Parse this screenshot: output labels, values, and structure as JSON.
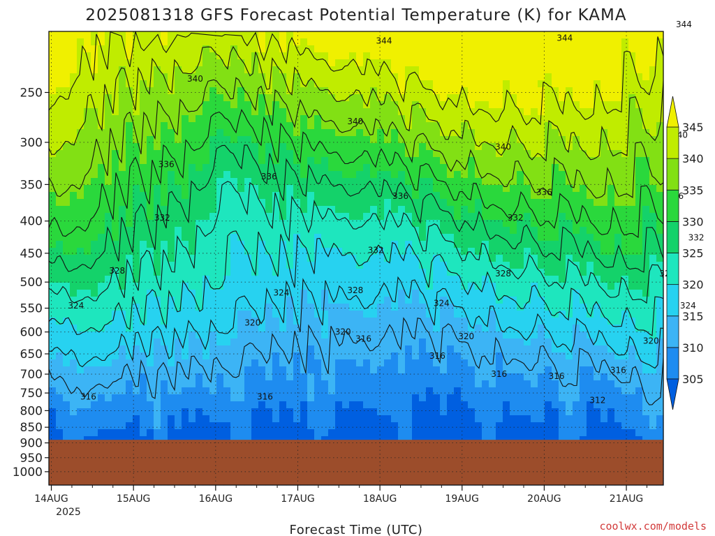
{
  "chart_data": {
    "type": "contour",
    "title": "2025081318 GFS Forecast Potential Temperature (K) for KAMA",
    "xlabel": "Forecast Time (UTC)",
    "ylabel": "",
    "y_axis": {
      "ticks": [
        250,
        300,
        350,
        400,
        450,
        500,
        550,
        600,
        650,
        700,
        750,
        800,
        850,
        900,
        950,
        1000
      ],
      "range": [
        200,
        1050
      ],
      "scale": "log-pressure"
    },
    "x_axis": {
      "ticks": [
        "14AUG",
        "15AUG",
        "16AUG",
        "17AUG",
        "18AUG",
        "19AUG",
        "20AUG",
        "21AUG"
      ],
      "year_label": "2025",
      "range_days": [
        -0.03,
        7.45
      ]
    },
    "grid": true,
    "surface_level_hpa": 890,
    "colorbar": {
      "levels": [
        305,
        310,
        315,
        320,
        325,
        330,
        335,
        340,
        345
      ],
      "colors": [
        "#005fe0",
        "#1e8cf0",
        "#3cb4f5",
        "#27d2f0",
        "#1ee6be",
        "#14d26a",
        "#2ad83c",
        "#82e014",
        "#c0ec00",
        "#f0f000"
      ],
      "below_color": "#005fe0",
      "above_color": "#f0f000"
    },
    "contour_lines": [
      {
        "value": 312,
        "label_at": {
          "day": 6.65,
          "hpa": 770
        }
      },
      {
        "value": 316,
        "label_at": [
          {
            "day": 0.45,
            "hpa": 760
          },
          {
            "day": 2.6,
            "hpa": 760
          },
          {
            "day": 3.8,
            "hpa": 615
          },
          {
            "day": 4.7,
            "hpa": 655
          },
          {
            "day": 5.45,
            "hpa": 700
          },
          {
            "day": 6.15,
            "hpa": 705
          },
          {
            "day": 6.9,
            "hpa": 690
          }
        ]
      },
      {
        "value": 320,
        "label_at": [
          {
            "day": 2.45,
            "hpa": 580
          },
          {
            "day": 3.55,
            "hpa": 600
          },
          {
            "day": 5.05,
            "hpa": 610
          },
          {
            "day": 7.3,
            "hpa": 620
          }
        ]
      },
      {
        "value": 324,
        "label_at": [
          {
            "day": 0.3,
            "hpa": 545
          },
          {
            "day": 2.8,
            "hpa": 520
          },
          {
            "day": 4.75,
            "hpa": 540
          },
          {
            "day": 7.75,
            "hpa": 545
          }
        ]
      },
      {
        "value": 328,
        "label_at": [
          {
            "day": 0.8,
            "hpa": 480
          },
          {
            "day": 3.7,
            "hpa": 515
          },
          {
            "day": 5.5,
            "hpa": 485
          },
          {
            "day": 7.5,
            "hpa": 485
          }
        ]
      },
      {
        "value": 332,
        "label_at": [
          {
            "day": 1.35,
            "hpa": 395
          },
          {
            "day": 3.95,
            "hpa": 445
          },
          {
            "day": 5.65,
            "hpa": 395
          },
          {
            "day": 7.85,
            "hpa": 425
          }
        ]
      },
      {
        "value": 336,
        "label_at": [
          {
            "day": 1.4,
            "hpa": 325
          },
          {
            "day": 2.65,
            "hpa": 340
          },
          {
            "day": 4.25,
            "hpa": 365
          },
          {
            "day": 6.0,
            "hpa": 360
          },
          {
            "day": 7.6,
            "hpa": 365
          }
        ]
      },
      {
        "value": 340,
        "label_at": [
          {
            "day": 1.75,
            "hpa": 238
          },
          {
            "day": 3.7,
            "hpa": 278
          },
          {
            "day": 5.5,
            "hpa": 305
          },
          {
            "day": 7.65,
            "hpa": 292
          }
        ]
      },
      {
        "value": 344,
        "label_at": [
          {
            "day": 4.05,
            "hpa": 207
          },
          {
            "day": 6.25,
            "hpa": 205
          },
          {
            "day": 7.7,
            "hpa": 195
          }
        ]
      }
    ]
  },
  "labels": {
    "title": "2025081318 GFS Forecast Potential Temperature (K) for KAMA",
    "xlabel": "Forecast Time (UTC)",
    "year": "2025",
    "credit": "coolwx.com/models"
  }
}
